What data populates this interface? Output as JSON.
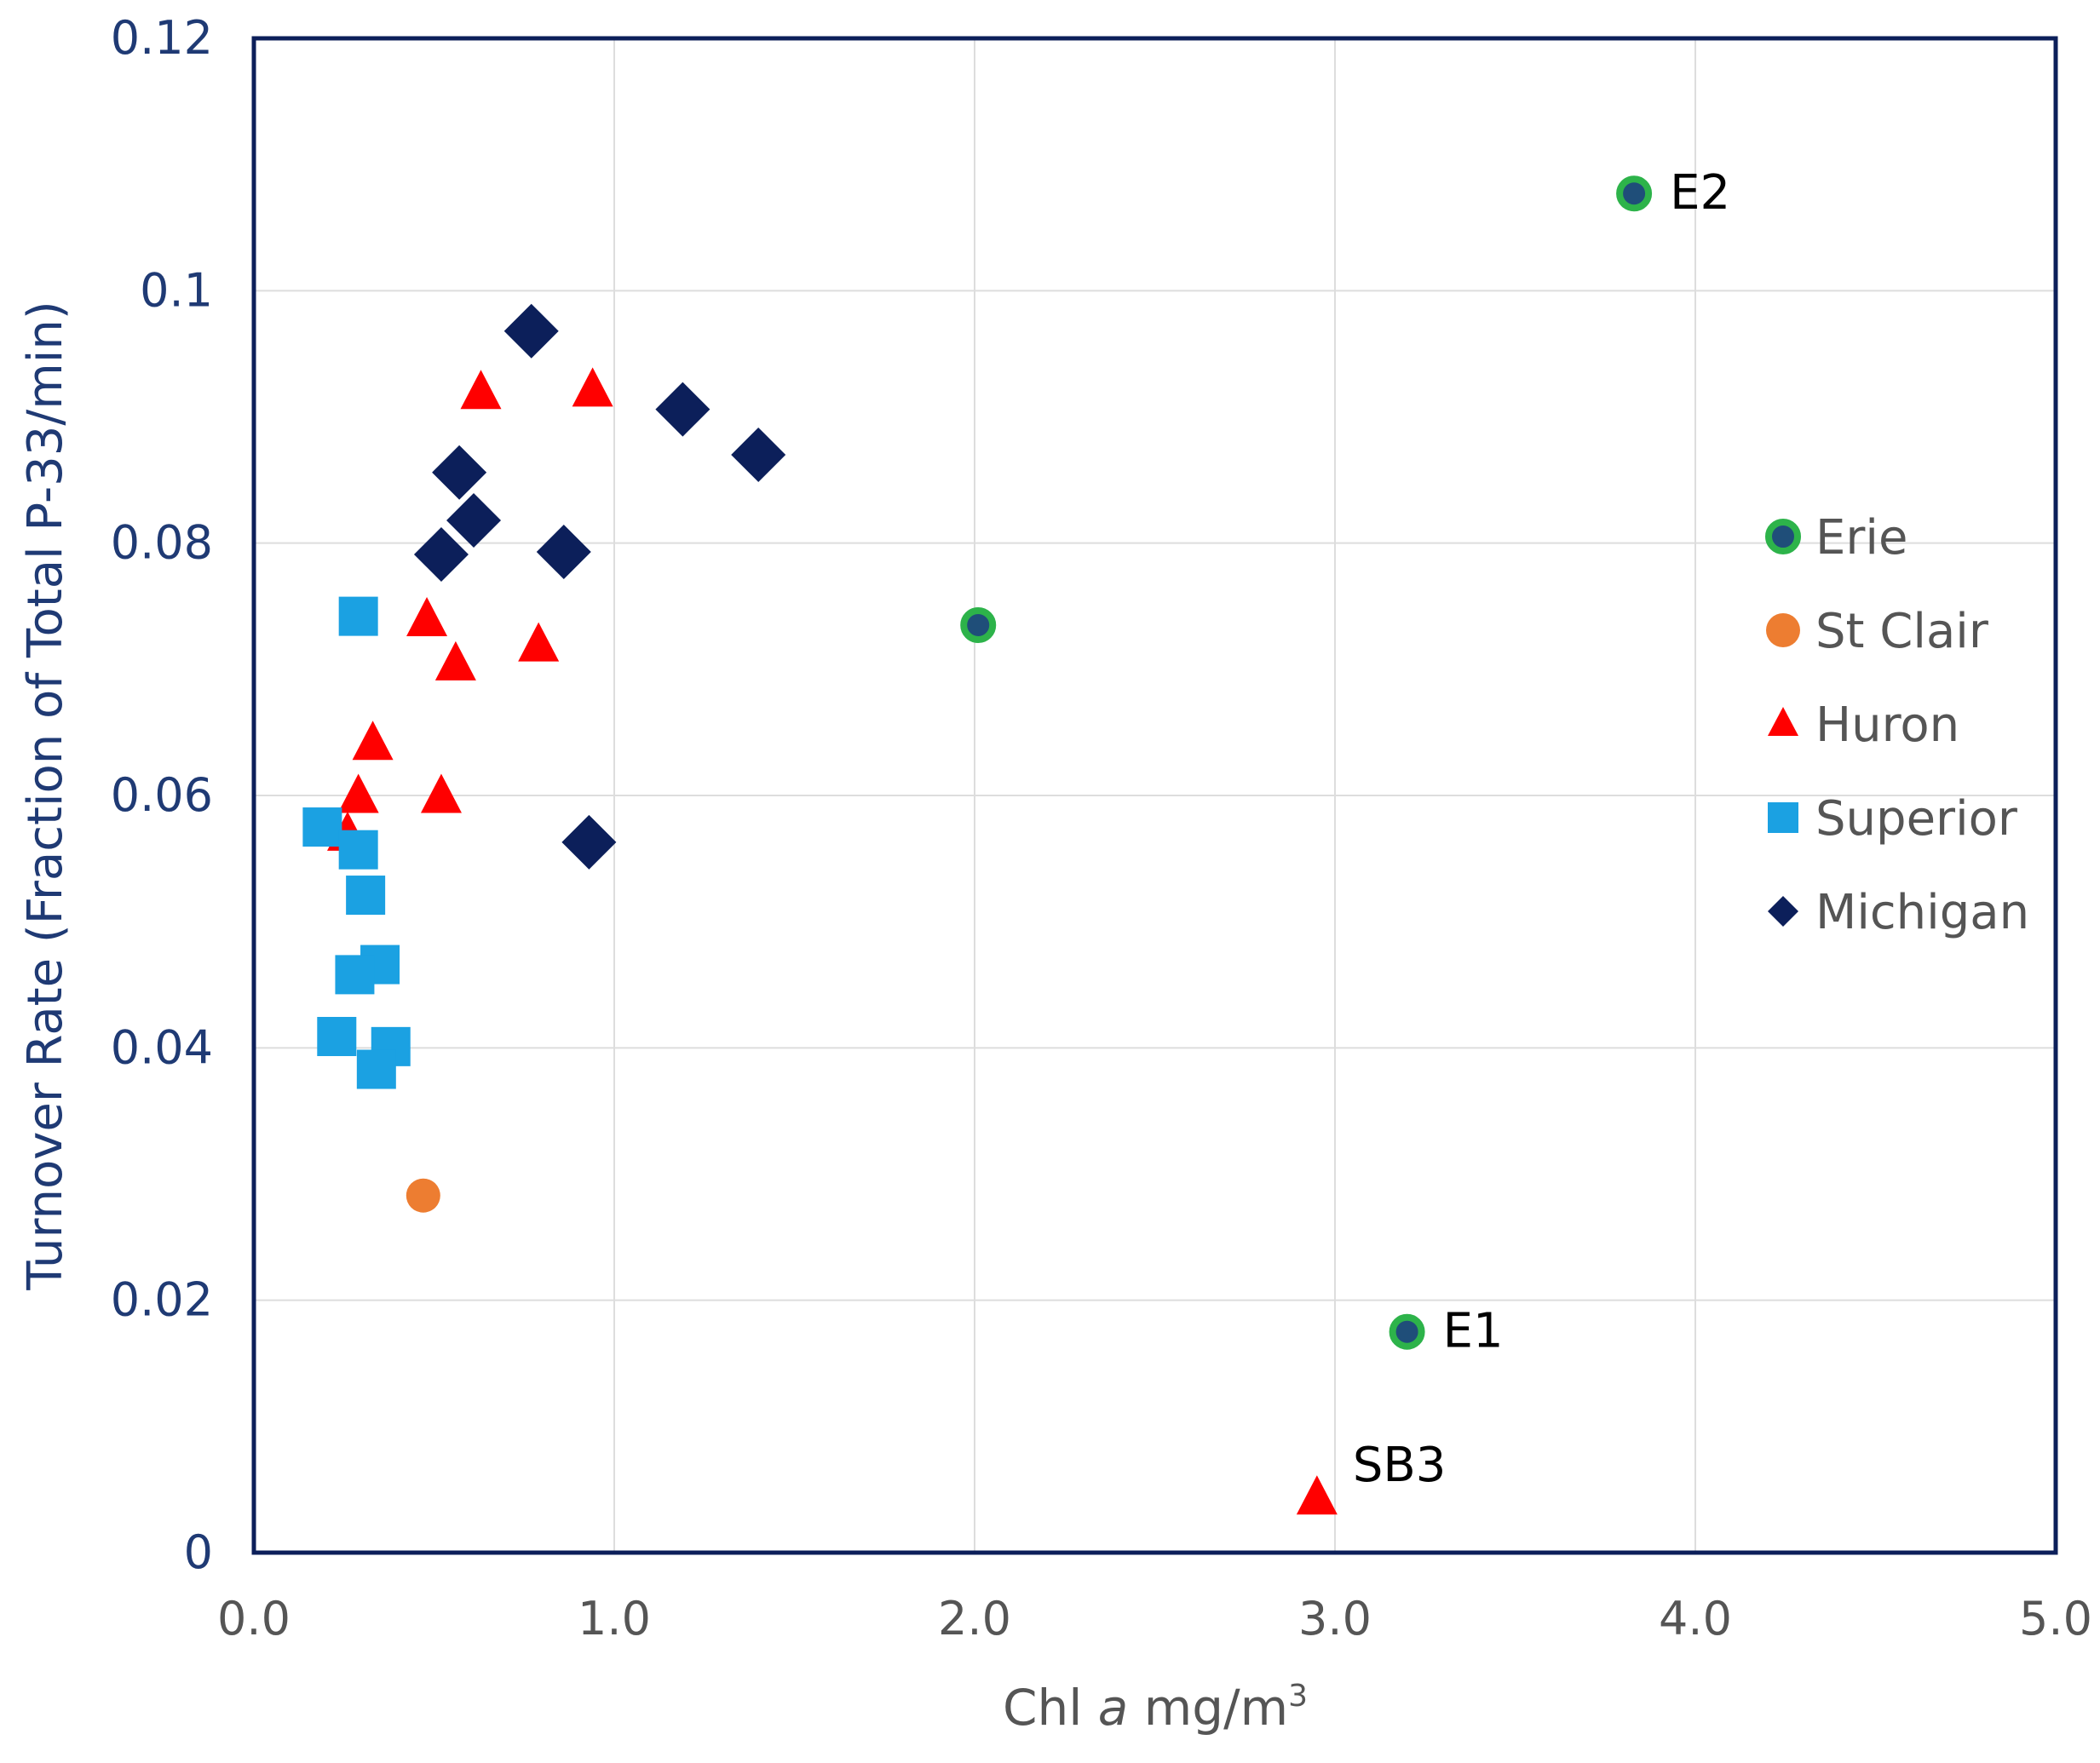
{
  "chart_data": {
    "type": "scatter",
    "title": "",
    "xlabel_parts": [
      "Chl ",
      "a",
      " mg/m",
      "3"
    ],
    "ylabel": "Turnover Rate (Fraction of Total P-33/min)",
    "xlim": [
      0,
      5
    ],
    "ylim": [
      0,
      0.12
    ],
    "x_ticks": [
      0,
      1,
      2,
      3,
      4,
      5
    ],
    "x_tick_labels": [
      "0.0",
      "1.0",
      "2.0",
      "3.0",
      "4.0",
      "5.0"
    ],
    "y_ticks": [
      0,
      0.02,
      0.04,
      0.06,
      0.08,
      0.1,
      0.12
    ],
    "y_tick_labels": [
      "0",
      "0.02",
      "0.04",
      "0.06",
      "0.08",
      "0.1",
      "0.12"
    ],
    "grid": true,
    "legend_position": "right",
    "series": [
      {
        "name": "Erie",
        "marker": "circle",
        "color": "#1f4e79",
        "edge_color": "#2db34a",
        "points": [
          {
            "x": 3.83,
            "y": 0.1077,
            "label": "E2"
          },
          {
            "x": 2.01,
            "y": 0.0735
          },
          {
            "x": 3.2,
            "y": 0.0175,
            "label": "E1"
          }
        ]
      },
      {
        "name": "St Clair",
        "marker": "circle",
        "color": "#ed7d31",
        "points": [
          {
            "x": 0.47,
            "y": 0.0283
          }
        ]
      },
      {
        "name": "Huron",
        "marker": "triangle",
        "color": "#ff0000",
        "points": [
          {
            "x": 0.63,
            "y": 0.0918
          },
          {
            "x": 0.94,
            "y": 0.092
          },
          {
            "x": 0.48,
            "y": 0.0738
          },
          {
            "x": 0.56,
            "y": 0.0703
          },
          {
            "x": 0.79,
            "y": 0.0718
          },
          {
            "x": 0.33,
            "y": 0.064
          },
          {
            "x": 0.29,
            "y": 0.0598
          },
          {
            "x": 0.52,
            "y": 0.0598
          },
          {
            "x": 0.26,
            "y": 0.0568
          },
          {
            "x": 2.95,
            "y": 0.0042,
            "label": "SB3"
          }
        ]
      },
      {
        "name": "Superior",
        "marker": "square",
        "color": "#1ba1e2",
        "points": [
          {
            "x": 0.29,
            "y": 0.0742
          },
          {
            "x": 0.19,
            "y": 0.0575
          },
          {
            "x": 0.29,
            "y": 0.0557
          },
          {
            "x": 0.31,
            "y": 0.0521
          },
          {
            "x": 0.35,
            "y": 0.0466
          },
          {
            "x": 0.28,
            "y": 0.0458
          },
          {
            "x": 0.23,
            "y": 0.0409
          },
          {
            "x": 0.38,
            "y": 0.0401
          },
          {
            "x": 0.34,
            "y": 0.0383
          }
        ]
      },
      {
        "name": "Michigan",
        "marker": "diamond",
        "color": "#0c1f5a",
        "points": [
          {
            "x": 0.77,
            "y": 0.0968
          },
          {
            "x": 1.19,
            "y": 0.0906
          },
          {
            "x": 1.4,
            "y": 0.087
          },
          {
            "x": 0.57,
            "y": 0.0856
          },
          {
            "x": 0.61,
            "y": 0.0818
          },
          {
            "x": 0.52,
            "y": 0.0791
          },
          {
            "x": 0.86,
            "y": 0.0793
          },
          {
            "x": 0.93,
            "y": 0.0563
          }
        ]
      }
    ]
  }
}
